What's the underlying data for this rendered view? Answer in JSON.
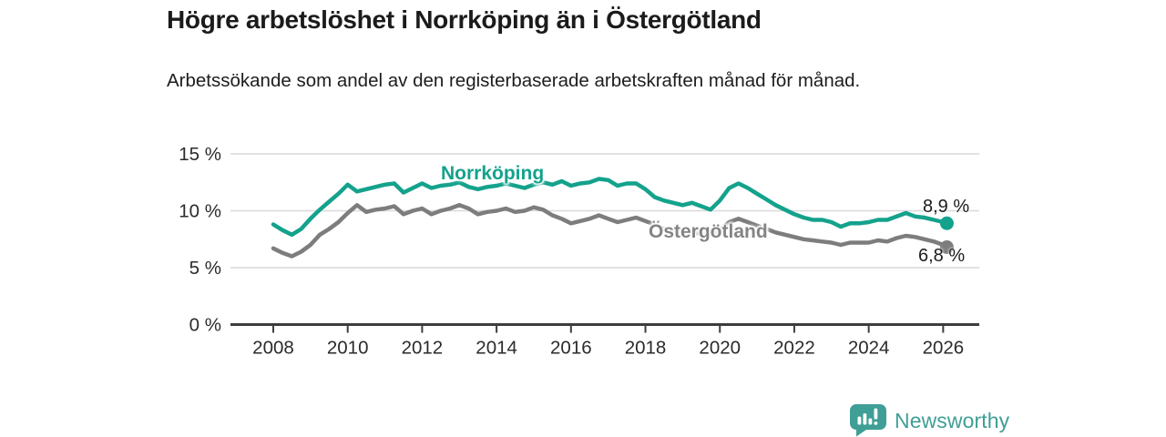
{
  "title": "Högre arbetslöshet i Norrköping än i Östergötland",
  "subtitle": "Arbetssökande som andel av den registerbaserade arbetskraften månad för månad.",
  "branding": {
    "name": "Newsworthy",
    "icon": "newsworthy-barchart-bubble-icon",
    "color": "#3f9e96"
  },
  "colors": {
    "norrkoping_line": "#14a28c",
    "ostergotland_line": "#7d7d7d",
    "ostergotland_label": "#848484",
    "gridline": "#d9d9d9",
    "axis": "#3d3d3d",
    "axis_text": "#2b2b2b",
    "title_text": "#1b1b1b"
  },
  "chart_data": {
    "type": "line",
    "title": "Högre arbetslöshet i Norrköping än i Östergötland",
    "subtitle": "Arbetssökande som andel av den registerbaserade arbetskraften månad för månad.",
    "xlabel": "",
    "ylabel": "",
    "unit": "%",
    "grid": "horizontal",
    "legend_position": "inline-labels",
    "xlim": [
      2006.85,
      2026.97
    ],
    "ylim": [
      0,
      15
    ],
    "xticks": [
      2008,
      2010,
      2012,
      2014,
      2016,
      2018,
      2020,
      2022,
      2024,
      2026
    ],
    "yticks": [
      0,
      5,
      10,
      15
    ],
    "ytick_labels": [
      "0 %",
      "5 %",
      "10 %",
      "15 %"
    ],
    "x": [
      2008,
      2008.25,
      2008.5,
      2008.75,
      2009,
      2009.25,
      2009.5,
      2009.75,
      2010,
      2010.25,
      2010.5,
      2010.75,
      2011,
      2011.25,
      2011.5,
      2011.75,
      2012,
      2012.25,
      2012.5,
      2012.75,
      2013,
      2013.25,
      2013.5,
      2013.75,
      2014,
      2014.25,
      2014.5,
      2014.75,
      2015,
      2015.25,
      2015.5,
      2015.75,
      2016,
      2016.25,
      2016.5,
      2016.75,
      2017,
      2017.25,
      2017.5,
      2017.75,
      2018,
      2018.25,
      2018.5,
      2018.75,
      2019,
      2019.25,
      2019.5,
      2019.75,
      2020,
      2020.25,
      2020.5,
      2020.75,
      2021,
      2021.25,
      2021.5,
      2021.75,
      2022,
      2022.25,
      2022.5,
      2022.75,
      2023,
      2023.25,
      2023.5,
      2023.75,
      2024,
      2024.25,
      2024.5,
      2024.75,
      2025,
      2025.25,
      2025.5,
      2025.75,
      2026,
      2026.1
    ],
    "series": [
      {
        "name": "Norrköping",
        "color_key": "norrkoping_line",
        "end_label": "8,9 %",
        "end_value": 8.9,
        "values": [
          8.8,
          8.3,
          7.9,
          8.4,
          9.3,
          10.1,
          10.8,
          11.5,
          12.3,
          11.7,
          11.9,
          12.1,
          12.3,
          12.4,
          11.6,
          12.0,
          12.4,
          12.0,
          12.2,
          12.3,
          12.5,
          12.1,
          11.9,
          12.1,
          12.2,
          12.4,
          12.2,
          12.0,
          12.3,
          12.5,
          12.3,
          12.6,
          12.2,
          12.4,
          12.5,
          12.8,
          12.7,
          12.2,
          12.4,
          12.4,
          11.9,
          11.2,
          10.9,
          10.7,
          10.5,
          10.7,
          10.4,
          10.1,
          10.9,
          12.0,
          12.4,
          12.0,
          11.5,
          11.0,
          10.5,
          10.1,
          9.7,
          9.4,
          9.2,
          9.2,
          9.0,
          8.6,
          8.9,
          8.9,
          9.0,
          9.2,
          9.2,
          9.5,
          9.8,
          9.5,
          9.4,
          9.2,
          9.0,
          8.9
        ]
      },
      {
        "name": "Östergötland",
        "color_key": "ostergotland_line",
        "end_label": "6,8 %",
        "end_value": 6.8,
        "values": [
          6.7,
          6.3,
          6.0,
          6.4,
          7.0,
          7.9,
          8.4,
          9.0,
          9.8,
          10.5,
          9.9,
          10.1,
          10.2,
          10.4,
          9.7,
          10.0,
          10.2,
          9.7,
          10.0,
          10.2,
          10.5,
          10.2,
          9.7,
          9.9,
          10.0,
          10.2,
          9.9,
          10.0,
          10.3,
          10.1,
          9.6,
          9.3,
          8.9,
          9.1,
          9.3,
          9.6,
          9.3,
          9.0,
          9.2,
          9.4,
          9.1,
          8.8,
          8.4,
          8.3,
          8.2,
          8.1,
          8.0,
          7.9,
          8.3,
          9.0,
          9.3,
          9.0,
          8.7,
          8.4,
          8.1,
          7.9,
          7.7,
          7.5,
          7.4,
          7.3,
          7.2,
          7.0,
          7.2,
          7.2,
          7.2,
          7.4,
          7.3,
          7.6,
          7.8,
          7.7,
          7.5,
          7.3,
          7.0,
          6.8
        ]
      }
    ]
  }
}
